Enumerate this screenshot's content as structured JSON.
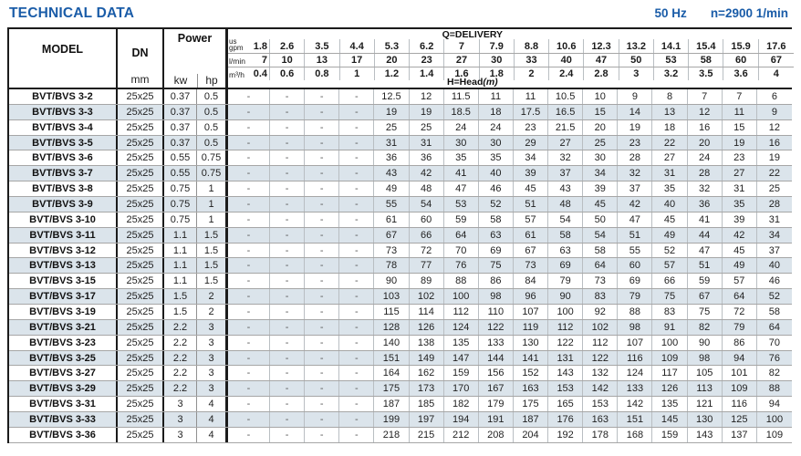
{
  "header": {
    "title": "TECHNICAL DATA",
    "frequency": "50 Hz",
    "speed": "n=2900 1/min"
  },
  "colors": {
    "accent_blue": "#1a5ca8",
    "row_shade": "#dbe4eb"
  },
  "table": {
    "model_header": "MODEL",
    "dn_header": "DN",
    "dn_unit": "mm",
    "power_header": "Power",
    "power_units": {
      "kw": "kw",
      "hp": "hp"
    },
    "delivery_label": "Q=DELIVERY",
    "head_label": "H=Head",
    "head_unit": "(m)",
    "flow_units": {
      "gpm_top": "us",
      "gpm": "gpm",
      "lmin": "l/min",
      "m3h": "m³/h"
    },
    "flow_rows": {
      "gpm": [
        "1.8",
        "2.6",
        "3.5",
        "4.4",
        "5.3",
        "6.2",
        "7",
        "7.9",
        "8.8",
        "10.6",
        "12.3",
        "13.2",
        "14.1",
        "15.4",
        "15.9",
        "17.6"
      ],
      "lmin": [
        "7",
        "10",
        "13",
        "17",
        "20",
        "23",
        "27",
        "30",
        "33",
        "40",
        "47",
        "50",
        "53",
        "58",
        "60",
        "67"
      ],
      "m3h": [
        "0.4",
        "0.6",
        "0.8",
        "1",
        "1.2",
        "1.4",
        "1.6",
        "1.8",
        "2",
        "2.4",
        "2.8",
        "3",
        "3.2",
        "3.5",
        "3.6",
        "4"
      ]
    },
    "rows": [
      {
        "model": "BVT/BVS 3-2",
        "dn": "25x25",
        "kw": "0.37",
        "hp": "0.5",
        "head": [
          "-",
          "-",
          "-",
          "-",
          "12.5",
          "12",
          "11.5",
          "11",
          "11",
          "10.5",
          "10",
          "9",
          "8",
          "7",
          "7",
          "6"
        ]
      },
      {
        "model": "BVT/BVS 3-3",
        "dn": "25x25",
        "kw": "0.37",
        "hp": "0.5",
        "head": [
          "-",
          "-",
          "-",
          "-",
          "19",
          "19",
          "18.5",
          "18",
          "17.5",
          "16.5",
          "15",
          "14",
          "13",
          "12",
          "11",
          "9"
        ]
      },
      {
        "model": "BVT/BVS 3-4",
        "dn": "25x25",
        "kw": "0.37",
        "hp": "0.5",
        "head": [
          "-",
          "-",
          "-",
          "-",
          "25",
          "25",
          "24",
          "24",
          "23",
          "21.5",
          "20",
          "19",
          "18",
          "16",
          "15",
          "12"
        ]
      },
      {
        "model": "BVT/BVS 3-5",
        "dn": "25x25",
        "kw": "0.37",
        "hp": "0.5",
        "head": [
          "-",
          "-",
          "-",
          "-",
          "31",
          "31",
          "30",
          "30",
          "29",
          "27",
          "25",
          "23",
          "22",
          "20",
          "19",
          "16"
        ]
      },
      {
        "model": "BVT/BVS 3-6",
        "dn": "25x25",
        "kw": "0.55",
        "hp": "0.75",
        "head": [
          "-",
          "-",
          "-",
          "-",
          "36",
          "36",
          "35",
          "35",
          "34",
          "32",
          "30",
          "28",
          "27",
          "24",
          "23",
          "19"
        ]
      },
      {
        "model": "BVT/BVS 3-7",
        "dn": "25x25",
        "kw": "0.55",
        "hp": "0.75",
        "head": [
          "-",
          "-",
          "-",
          "-",
          "43",
          "42",
          "41",
          "40",
          "39",
          "37",
          "34",
          "32",
          "31",
          "28",
          "27",
          "22"
        ]
      },
      {
        "model": "BVT/BVS 3-8",
        "dn": "25x25",
        "kw": "0.75",
        "hp": "1",
        "head": [
          "-",
          "-",
          "-",
          "-",
          "49",
          "48",
          "47",
          "46",
          "45",
          "43",
          "39",
          "37",
          "35",
          "32",
          "31",
          "25"
        ]
      },
      {
        "model": "BVT/BVS 3-9",
        "dn": "25x25",
        "kw": "0.75",
        "hp": "1",
        "head": [
          "-",
          "-",
          "-",
          "-",
          "55",
          "54",
          "53",
          "52",
          "51",
          "48",
          "45",
          "42",
          "40",
          "36",
          "35",
          "28"
        ]
      },
      {
        "model": "BVT/BVS 3-10",
        "dn": "25x25",
        "kw": "0.75",
        "hp": "1",
        "head": [
          "-",
          "-",
          "-",
          "-",
          "61",
          "60",
          "59",
          "58",
          "57",
          "54",
          "50",
          "47",
          "45",
          "41",
          "39",
          "31"
        ]
      },
      {
        "model": "BVT/BVS 3-11",
        "dn": "25x25",
        "kw": "1.1",
        "hp": "1.5",
        "head": [
          "-",
          "-",
          "-",
          "-",
          "67",
          "66",
          "64",
          "63",
          "61",
          "58",
          "54",
          "51",
          "49",
          "44",
          "42",
          "34"
        ]
      },
      {
        "model": "BVT/BVS 3-12",
        "dn": "25x25",
        "kw": "1.1",
        "hp": "1.5",
        "head": [
          "-",
          "-",
          "-",
          "-",
          "73",
          "72",
          "70",
          "69",
          "67",
          "63",
          "58",
          "55",
          "52",
          "47",
          "45",
          "37"
        ]
      },
      {
        "model": "BVT/BVS 3-13",
        "dn": "25x25",
        "kw": "1.1",
        "hp": "1.5",
        "head": [
          "-",
          "-",
          "-",
          "-",
          "78",
          "77",
          "76",
          "75",
          "73",
          "69",
          "64",
          "60",
          "57",
          "51",
          "49",
          "40"
        ]
      },
      {
        "model": "BVT/BVS 3-15",
        "dn": "25x25",
        "kw": "1.1",
        "hp": "1.5",
        "head": [
          "-",
          "-",
          "-",
          "-",
          "90",
          "89",
          "88",
          "86",
          "84",
          "79",
          "73",
          "69",
          "66",
          "59",
          "57",
          "46"
        ]
      },
      {
        "model": "BVT/BVS 3-17",
        "dn": "25x25",
        "kw": "1.5",
        "hp": "2",
        "head": [
          "-",
          "-",
          "-",
          "-",
          "103",
          "102",
          "100",
          "98",
          "96",
          "90",
          "83",
          "79",
          "75",
          "67",
          "64",
          "52"
        ]
      },
      {
        "model": "BVT/BVS 3-19",
        "dn": "25x25",
        "kw": "1.5",
        "hp": "2",
        "head": [
          "-",
          "-",
          "-",
          "-",
          "115",
          "114",
          "112",
          "110",
          "107",
          "100",
          "92",
          "88",
          "83",
          "75",
          "72",
          "58"
        ]
      },
      {
        "model": "BVT/BVS 3-21",
        "dn": "25x25",
        "kw": "2.2",
        "hp": "3",
        "head": [
          "-",
          "-",
          "-",
          "-",
          "128",
          "126",
          "124",
          "122",
          "119",
          "112",
          "102",
          "98",
          "91",
          "82",
          "79",
          "64"
        ]
      },
      {
        "model": "BVT/BVS 3-23",
        "dn": "25x25",
        "kw": "2.2",
        "hp": "3",
        "head": [
          "-",
          "-",
          "-",
          "-",
          "140",
          "138",
          "135",
          "133",
          "130",
          "122",
          "112",
          "107",
          "100",
          "90",
          "86",
          "70"
        ]
      },
      {
        "model": "BVT/BVS 3-25",
        "dn": "25x25",
        "kw": "2.2",
        "hp": "3",
        "head": [
          "-",
          "-",
          "-",
          "-",
          "151",
          "149",
          "147",
          "144",
          "141",
          "131",
          "122",
          "116",
          "109",
          "98",
          "94",
          "76"
        ]
      },
      {
        "model": "BVT/BVS 3-27",
        "dn": "25x25",
        "kw": "2.2",
        "hp": "3",
        "head": [
          "-",
          "-",
          "-",
          "-",
          "164",
          "162",
          "159",
          "156",
          "152",
          "143",
          "132",
          "124",
          "117",
          "105",
          "101",
          "82"
        ]
      },
      {
        "model": "BVT/BVS 3-29",
        "dn": "25x25",
        "kw": "2.2",
        "hp": "3",
        "head": [
          "-",
          "-",
          "-",
          "-",
          "175",
          "173",
          "170",
          "167",
          "163",
          "153",
          "142",
          "133",
          "126",
          "113",
          "109",
          "88"
        ]
      },
      {
        "model": "BVT/BVS 3-31",
        "dn": "25x25",
        "kw": "3",
        "hp": "4",
        "head": [
          "-",
          "-",
          "-",
          "-",
          "187",
          "185",
          "182",
          "179",
          "175",
          "165",
          "153",
          "142",
          "135",
          "121",
          "116",
          "94"
        ]
      },
      {
        "model": "BVT/BVS 3-33",
        "dn": "25x25",
        "kw": "3",
        "hp": "4",
        "head": [
          "-",
          "-",
          "-",
          "-",
          "199",
          "197",
          "194",
          "191",
          "187",
          "176",
          "163",
          "151",
          "145",
          "130",
          "125",
          "100"
        ]
      },
      {
        "model": "BVT/BVS 3-36",
        "dn": "25x25",
        "kw": "3",
        "hp": "4",
        "head": [
          "-",
          "-",
          "-",
          "-",
          "218",
          "215",
          "212",
          "208",
          "204",
          "192",
          "178",
          "168",
          "159",
          "143",
          "137",
          "109"
        ]
      }
    ]
  }
}
